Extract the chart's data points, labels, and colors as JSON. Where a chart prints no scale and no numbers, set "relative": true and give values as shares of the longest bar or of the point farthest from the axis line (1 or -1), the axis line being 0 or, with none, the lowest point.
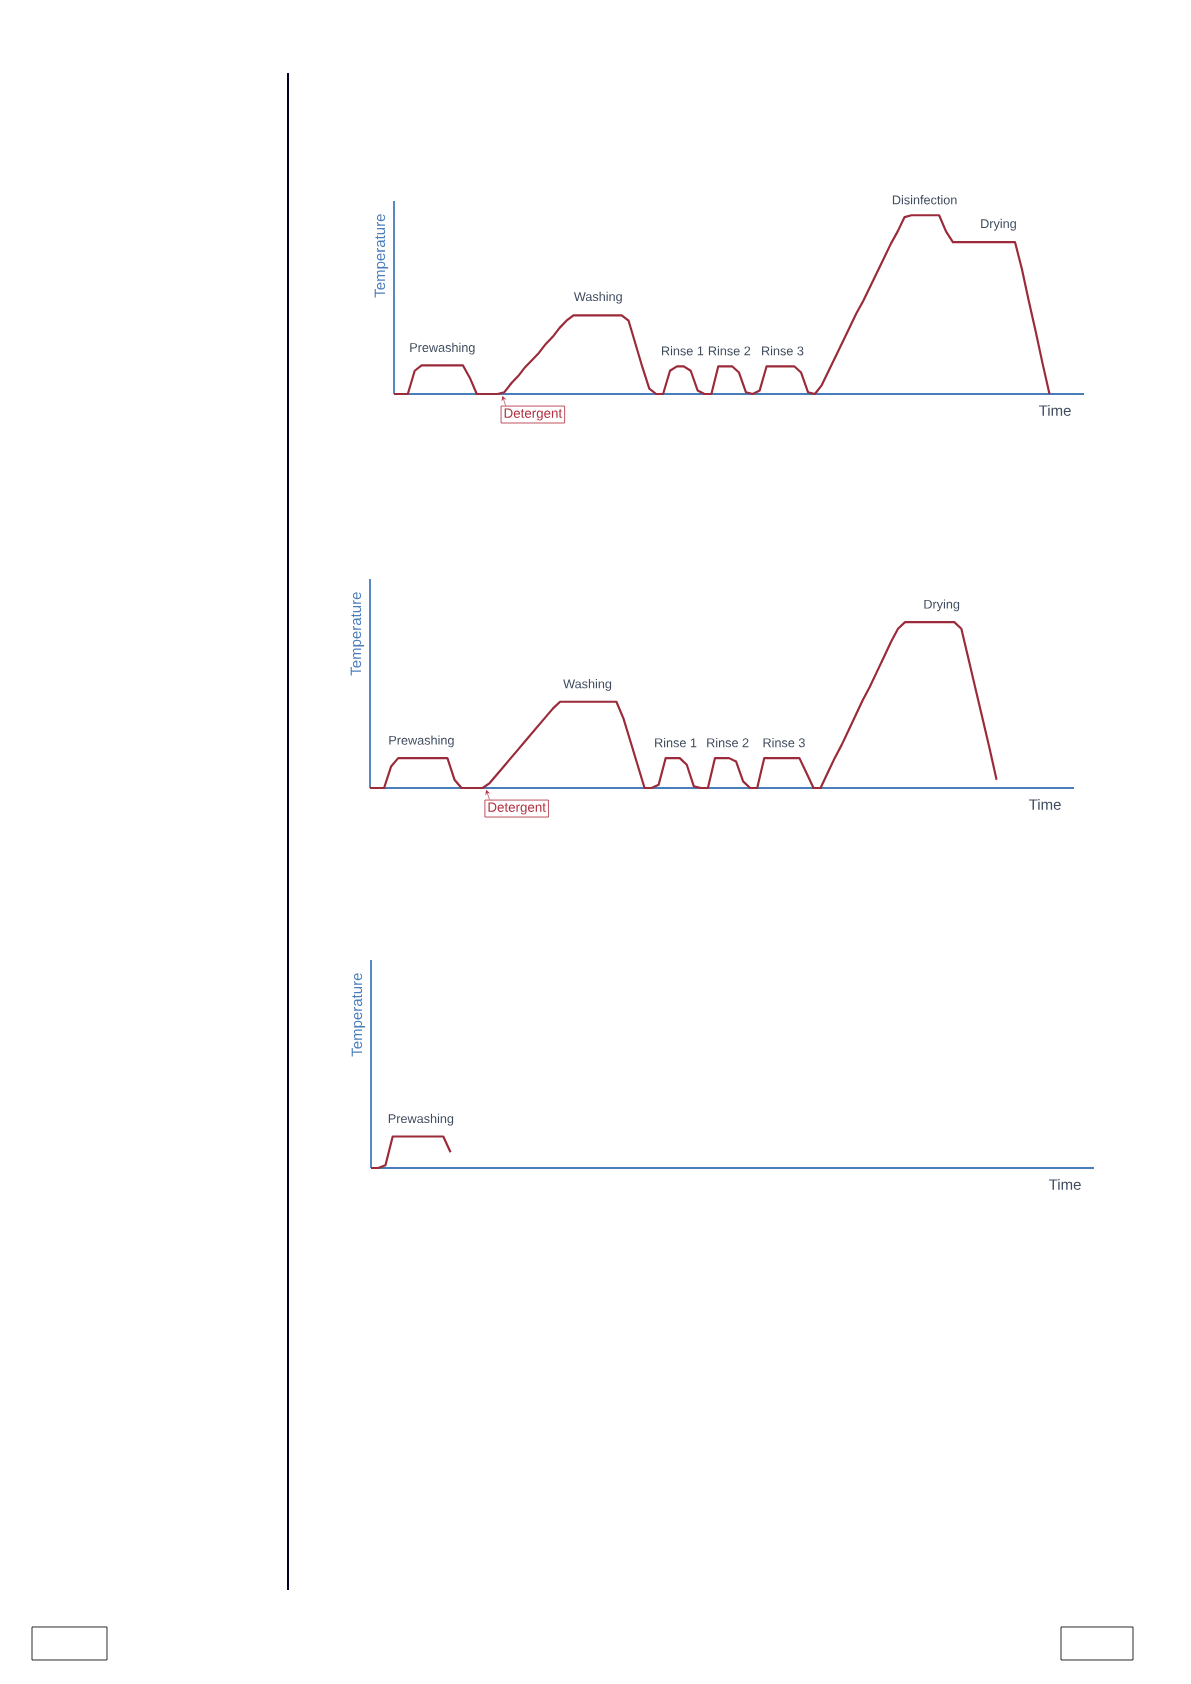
{
  "chart_data": [
    {
      "type": "line",
      "relative": true,
      "xlabel": "Time",
      "ylabel": "Temperature",
      "categories": [
        null,
        null,
        null,
        null,
        null,
        null,
        null,
        null,
        null,
        null,
        null,
        null,
        null,
        null,
        null,
        null,
        null,
        null,
        null,
        null,
        null,
        null,
        null,
        null,
        null,
        null,
        null,
        null,
        null,
        null,
        null,
        null,
        null,
        null,
        null,
        null,
        null,
        null,
        null,
        null,
        null,
        null,
        null,
        null,
        null,
        null,
        null,
        null,
        null,
        null,
        null,
        null,
        null,
        null,
        null,
        null,
        null,
        null,
        null,
        null,
        null,
        null,
        null,
        null,
        null,
        null,
        null,
        null,
        null,
        null,
        null,
        null,
        null,
        null,
        null,
        null,
        null,
        null,
        null,
        null,
        null,
        null,
        null,
        null,
        null,
        null,
        null,
        null,
        null,
        null,
        null,
        null,
        null,
        null,
        null,
        null,
        null,
        null,
        null,
        null,
        null
      ],
      "series": [
        {
          "color": "#9b2b3a",
          "values": [
            0,
            0,
            0,
            0.13,
            0.16,
            0.16,
            0.16,
            0.16,
            0.16,
            0.16,
            0.16,
            0.09,
            0,
            0,
            0,
            0,
            0.01,
            0.06,
            0.1,
            0.15,
            0.19,
            0.23,
            0.28,
            0.32,
            0.37,
            0.41,
            0.44,
            0.44,
            0.44,
            0.44,
            0.44,
            0.44,
            0.44,
            0.44,
            0.41,
            0.28,
            0.15,
            0.03,
            0,
            0,
            0.13,
            0.155,
            0.155,
            0.13,
            0.02,
            0,
            0,
            0.155,
            0.155,
            0.155,
            0.12,
            0.01,
            0,
            0.02,
            0.155,
            0.155,
            0.155,
            0.155,
            0.155,
            0.12,
            0.01,
            0,
            0.05,
            0.13,
            0.21,
            0.29,
            0.37,
            0.45,
            0.52,
            0.6,
            0.68,
            0.76,
            0.84,
            0.91,
            0.99,
            1,
            1,
            1,
            1,
            1,
            0.91,
            0.85,
            0.85,
            0.85,
            0.85,
            0.85,
            0.85,
            0.85,
            0.85,
            0.85,
            0.85,
            0.7,
            0.52,
            0.35,
            0.17,
            0,
            null,
            null,
            null,
            null,
            null
          ]
        }
      ],
      "annotations": [
        "Prewashing",
        "Detergent",
        "Washing",
        "Rinse 1",
        "Rinse 2",
        "Rinse 3",
        "Disinfection",
        "Drying"
      ]
    },
    {
      "type": "line",
      "relative": true,
      "xlabel": "Time",
      "ylabel": "Temperature",
      "categories": [
        null,
        null,
        null,
        null,
        null,
        null,
        null,
        null,
        null,
        null,
        null,
        null,
        null,
        null,
        null,
        null,
        null,
        null,
        null,
        null,
        null,
        null,
        null,
        null,
        null,
        null,
        null,
        null,
        null,
        null,
        null,
        null,
        null,
        null,
        null,
        null,
        null,
        null,
        null,
        null,
        null,
        null,
        null,
        null,
        null,
        null,
        null,
        null,
        null,
        null,
        null,
        null,
        null,
        null,
        null,
        null,
        null,
        null,
        null,
        null,
        null,
        null,
        null,
        null,
        null,
        null,
        null,
        null,
        null,
        null,
        null,
        null,
        null,
        null,
        null,
        null,
        null,
        null,
        null,
        null,
        null,
        null,
        null,
        null,
        null,
        null,
        null,
        null,
        null,
        null,
        null,
        null,
        null,
        null,
        null,
        null,
        null,
        null,
        null,
        null,
        null
      ],
      "series": [
        {
          "color": "#9b2b3a",
          "values": [
            0,
            0,
            0,
            0.13,
            0.18,
            0.18,
            0.18,
            0.18,
            0.18,
            0.18,
            0.18,
            0.18,
            0.05,
            0,
            0,
            0,
            0,
            0.03,
            0.08,
            0.13,
            0.18,
            0.23,
            0.28,
            0.33,
            0.38,
            0.43,
            0.48,
            0.52,
            0.52,
            0.52,
            0.52,
            0.52,
            0.52,
            0.52,
            0.52,
            0.52,
            0.42,
            0.28,
            0.14,
            0,
            0,
            0.02,
            0.18,
            0.18,
            0.18,
            0.14,
            0.01,
            0,
            0,
            0.18,
            0.18,
            0.18,
            0.16,
            0.04,
            0,
            0,
            0.18,
            0.18,
            0.18,
            0.18,
            0.18,
            0.18,
            0.09,
            0,
            0,
            0.09,
            0.18,
            0.26,
            0.35,
            0.44,
            0.53,
            0.61,
            0.7,
            0.79,
            0.88,
            0.96,
            1,
            1,
            1,
            1,
            1,
            1,
            1,
            1,
            0.96,
            0.78,
            0.6,
            0.42,
            0.24,
            0.05,
            null,
            null,
            null,
            null,
            null,
            null,
            null,
            null,
            null,
            null,
            null
          ]
        }
      ],
      "annotations": [
        "Prewashing",
        "Detergent",
        "Washing",
        "Rinse 1",
        "Rinse 2",
        "Rinse 3",
        "Drying"
      ]
    },
    {
      "type": "line",
      "relative": true,
      "xlabel": "Time",
      "ylabel": "Temperature",
      "categories": [
        null,
        null,
        null,
        null,
        null,
        null,
        null,
        null,
        null,
        null,
        null,
        null,
        null,
        null,
        null,
        null,
        null,
        null,
        null,
        null,
        null,
        null,
        null,
        null,
        null,
        null,
        null,
        null,
        null,
        null,
        null,
        null,
        null,
        null,
        null,
        null,
        null,
        null,
        null,
        null,
        null,
        null,
        null,
        null,
        null,
        null,
        null,
        null,
        null,
        null,
        null,
        null,
        null,
        null,
        null,
        null,
        null,
        null,
        null,
        null,
        null,
        null,
        null,
        null,
        null,
        null,
        null,
        null,
        null,
        null,
        null,
        null,
        null,
        null,
        null,
        null,
        null,
        null,
        null,
        null,
        null,
        null,
        null,
        null,
        null,
        null,
        null,
        null,
        null,
        null,
        null,
        null,
        null,
        null,
        null,
        null,
        null,
        null,
        null,
        null,
        null
      ],
      "series": [
        {
          "color": "#9b2b3a",
          "values": [
            0,
            0,
            0.09,
            1,
            1,
            1,
            1,
            1,
            1,
            1,
            1,
            0.5,
            null,
            null,
            null,
            null,
            null,
            null,
            null,
            null,
            null,
            null,
            null,
            null,
            null,
            null,
            null,
            null,
            null,
            null,
            null,
            null,
            null,
            null,
            null,
            null,
            null,
            null,
            null,
            null,
            null,
            null,
            null,
            null,
            null,
            null,
            null,
            null,
            null,
            null,
            null,
            null,
            null,
            null,
            null,
            null,
            null,
            null,
            null,
            null,
            null,
            null,
            null,
            null,
            null,
            null,
            null,
            null,
            null,
            null,
            null,
            null,
            null,
            null,
            null,
            null,
            null,
            null,
            null,
            null,
            null,
            null,
            null,
            null,
            null,
            null,
            null,
            null,
            null,
            null,
            null,
            null,
            null,
            null,
            null,
            null,
            null,
            null,
            null,
            null,
            null
          ]
        }
      ],
      "annotations": [
        "Prewashing"
      ]
    }
  ]
}
